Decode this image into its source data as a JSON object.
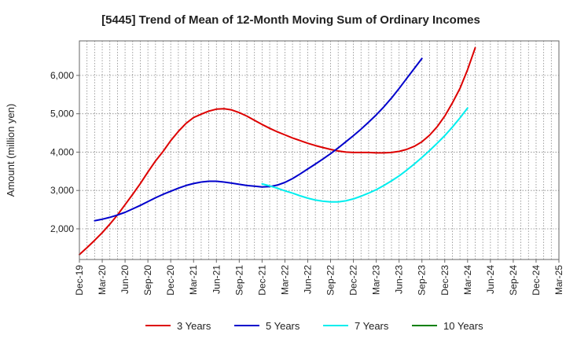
{
  "chart_data": {
    "type": "line",
    "title": "[5445]  Trend of Mean of 12-Month Moving Sum of Ordinary Incomes",
    "xlabel": "",
    "ylabel": "Amount (million yen)",
    "ylim": [
      1200,
      6900
    ],
    "yticks": [
      2000,
      3000,
      4000,
      5000,
      6000
    ],
    "ytick_labels": [
      "2,000",
      "3,000",
      "4,000",
      "5,000",
      "6,000"
    ],
    "x_labels": [
      "Dec-19",
      "Mar-20",
      "Jun-20",
      "Sep-20",
      "Dec-20",
      "Mar-21",
      "Jun-21",
      "Sep-21",
      "Dec-21",
      "Mar-22",
      "Jun-22",
      "Sep-22",
      "Dec-22",
      "Mar-23",
      "Jun-23",
      "Sep-23",
      "Dec-23",
      "Mar-24",
      "Jun-24",
      "Sep-24",
      "Dec-24",
      "Mar-25"
    ],
    "grid": true,
    "legend_position": "bottom",
    "series": [
      {
        "name": "3 Years",
        "color": "#dd0000",
        "start_index": 0,
        "values": [
          1330,
          1510,
          1700,
          1900,
          2120,
          2360,
          2630,
          2900,
          3180,
          3480,
          3770,
          4020,
          4300,
          4540,
          4750,
          4900,
          4990,
          5070,
          5120,
          5130,
          5100,
          5030,
          4940,
          4830,
          4720,
          4620,
          4530,
          4450,
          4370,
          4300,
          4230,
          4170,
          4120,
          4070,
          4030,
          4000,
          3990,
          3990,
          3990,
          3980,
          3980,
          3990,
          4020,
          4070,
          4150,
          4270,
          4440,
          4660,
          4940,
          5280,
          5660,
          6150,
          6720
        ]
      },
      {
        "name": "5 Years",
        "color": "#0000cc",
        "start_index": 2,
        "values": [
          2210,
          2250,
          2300,
          2360,
          2430,
          2520,
          2610,
          2710,
          2810,
          2900,
          2980,
          3060,
          3130,
          3180,
          3220,
          3240,
          3240,
          3220,
          3190,
          3160,
          3130,
          3110,
          3090,
          3100,
          3140,
          3210,
          3310,
          3430,
          3560,
          3690,
          3820,
          3960,
          4110,
          4270,
          4430,
          4600,
          4780,
          4970,
          5180,
          5410,
          5660,
          5920,
          6180,
          6440
        ]
      },
      {
        "name": "7 Years",
        "color": "#00eeee",
        "start_index": 24,
        "values": [
          3170,
          3120,
          3060,
          2990,
          2930,
          2860,
          2800,
          2750,
          2720,
          2700,
          2700,
          2730,
          2780,
          2850,
          2930,
          3020,
          3130,
          3250,
          3380,
          3530,
          3690,
          3860,
          4040,
          4230,
          4430,
          4650,
          4890,
          5150
        ]
      },
      {
        "name": "10 Years",
        "color": "#008000",
        "start_index": 0,
        "values": []
      }
    ]
  }
}
